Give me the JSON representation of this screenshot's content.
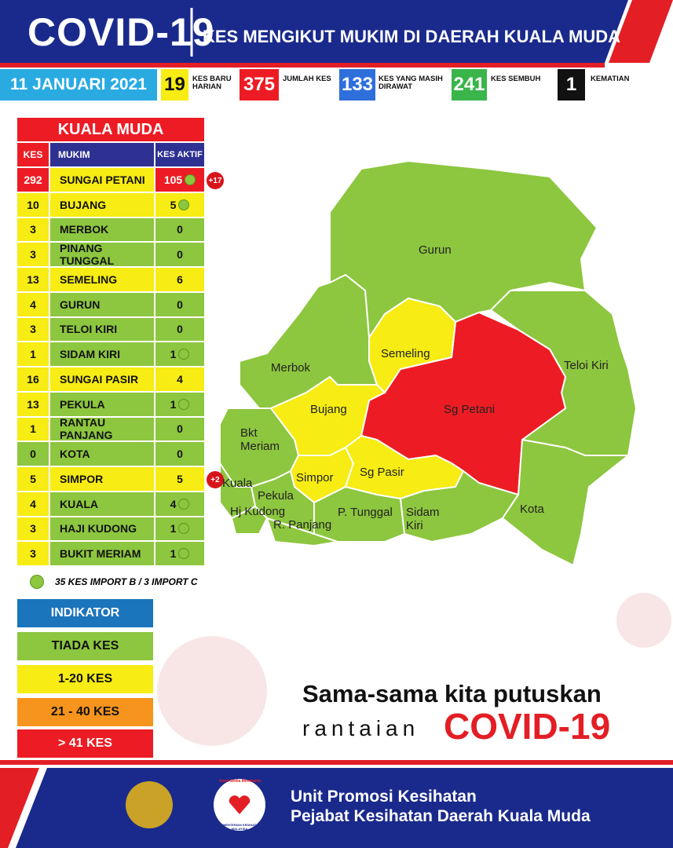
{
  "header": {
    "title": "COVID-19",
    "subtitle": "KES MENGIKUT MUKIM DI DAERAH KUALA MUDA",
    "date": "11 JANUARI 2021"
  },
  "stats": [
    {
      "value": 19,
      "label": "KES BARU HARIAN",
      "color": "#f7ec13"
    },
    {
      "value": 375,
      "label": "JUMLAH KES",
      "color": "#ed1c24"
    },
    {
      "value": 133,
      "label": "KES YANG MASIH DIRAWAT",
      "color": "#2e6fdc"
    },
    {
      "value": 241,
      "label": "KES SEMBUH",
      "color": "#39b54a"
    },
    {
      "value": 1,
      "label": "KEMATIAN",
      "color": "#111111"
    }
  ],
  "table": {
    "title": "KUALA MUDA",
    "headers": [
      "KES",
      "MUKIM",
      "KES AKTIF"
    ],
    "rows": [
      {
        "kes": 292,
        "mukim": "SUNGAI PETANI",
        "aktif": 105,
        "color": "#ed1c24",
        "import": true,
        "badge": "+17"
      },
      {
        "kes": 10,
        "mukim": "BUJANG",
        "aktif": 5,
        "color": "#f7ec13",
        "import": true
      },
      {
        "kes": 3,
        "mukim": "MERBOK",
        "aktif": 0,
        "color": "#8dc63f"
      },
      {
        "kes": 3,
        "mukim": "PINANG TUNGGAL",
        "aktif": 0,
        "color": "#8dc63f"
      },
      {
        "kes": 13,
        "mukim": "SEMELING",
        "aktif": 6,
        "color": "#f7ec13"
      },
      {
        "kes": 4,
        "mukim": "GURUN",
        "aktif": 0,
        "color": "#8dc63f"
      },
      {
        "kes": 3,
        "mukim": "TELOI KIRI",
        "aktif": 0,
        "color": "#8dc63f"
      },
      {
        "kes": 1,
        "mukim": "SIDAM KIRI",
        "aktif": 1,
        "color": "#8dc63f",
        "import": true
      },
      {
        "kes": 16,
        "mukim": "SUNGAI PASIR",
        "aktif": 4,
        "color": "#f7ec13"
      },
      {
        "kes": 13,
        "mukim": "PEKULA",
        "aktif": 1,
        "color": "#8dc63f",
        "import": true
      },
      {
        "kes": 1,
        "mukim": "RANTAU PANJANG",
        "aktif": 0,
        "color": "#8dc63f"
      },
      {
        "kes": 0,
        "mukim": "KOTA",
        "aktif": 0,
        "color": "#8dc63f"
      },
      {
        "kes": 5,
        "mukim": "SIMPOR",
        "aktif": 5,
        "color": "#f7ec13",
        "badge": "+2"
      },
      {
        "kes": 4,
        "mukim": "KUALA",
        "aktif": 4,
        "color": "#8dc63f",
        "import": true
      },
      {
        "kes": 3,
        "mukim": "HAJI KUDONG",
        "aktif": 1,
        "color": "#8dc63f",
        "import": true
      },
      {
        "kes": 3,
        "mukim": "BUKIT MERIAM",
        "aktif": 1,
        "color": "#8dc63f",
        "import": true
      }
    ],
    "note": "35 KES IMPORT B / 3 IMPORT C"
  },
  "legend": [
    {
      "label": "INDIKATOR",
      "color": "#1b75bc"
    },
    {
      "label": "TIADA KES",
      "color": "#8dc63f"
    },
    {
      "label": "1-20 KES",
      "color": "#f7ec13"
    },
    {
      "label": "21 - 40 KES",
      "color": "#f7941d"
    },
    {
      "label": "> 41 KES",
      "color": "#ed1c24"
    }
  ],
  "map": {
    "regions": [
      {
        "name": "Gurun",
        "color": "#8dc63f"
      },
      {
        "name": "Teloi Kiri",
        "color": "#8dc63f"
      },
      {
        "name": "Sg Petani",
        "color": "#ed1c24"
      },
      {
        "name": "Semeling",
        "color": "#f7ec13"
      },
      {
        "name": "Merbok",
        "color": "#8dc63f"
      },
      {
        "name": "Bujang",
        "color": "#f7ec13"
      },
      {
        "name": "Bkt Meriam",
        "color": "#8dc63f"
      },
      {
        "name": "Simpor",
        "color": "#f7ec13"
      },
      {
        "name": "Sg Pasir",
        "color": "#f7ec13"
      },
      {
        "name": "Pekula",
        "color": "#8dc63f"
      },
      {
        "name": "P. Tunggal",
        "color": "#8dc63f"
      },
      {
        "name": "Sidam Kiri",
        "color": "#8dc63f"
      },
      {
        "name": "Kota",
        "color": "#8dc63f"
      },
      {
        "name": "Kuala",
        "color": "#8dc63f"
      },
      {
        "name": "Hj Kudong",
        "color": "#8dc63f"
      },
      {
        "name": "R. Panjang",
        "color": "#8dc63f"
      }
    ]
  },
  "slogan": {
    "line1": "Sama-sama kita putuskan",
    "line2": "rantaian",
    "highlight": "COVID-19"
  },
  "footer": {
    "line1": "Unit Promosi Kesihatan",
    "line2": "Pejabat Kesihatan Daerah Kuala Muda",
    "logo_motto": "Kami Sedia Membantu",
    "logo_ministry": "KEMENTERIAN KESIHATAN MALAYSIA"
  }
}
